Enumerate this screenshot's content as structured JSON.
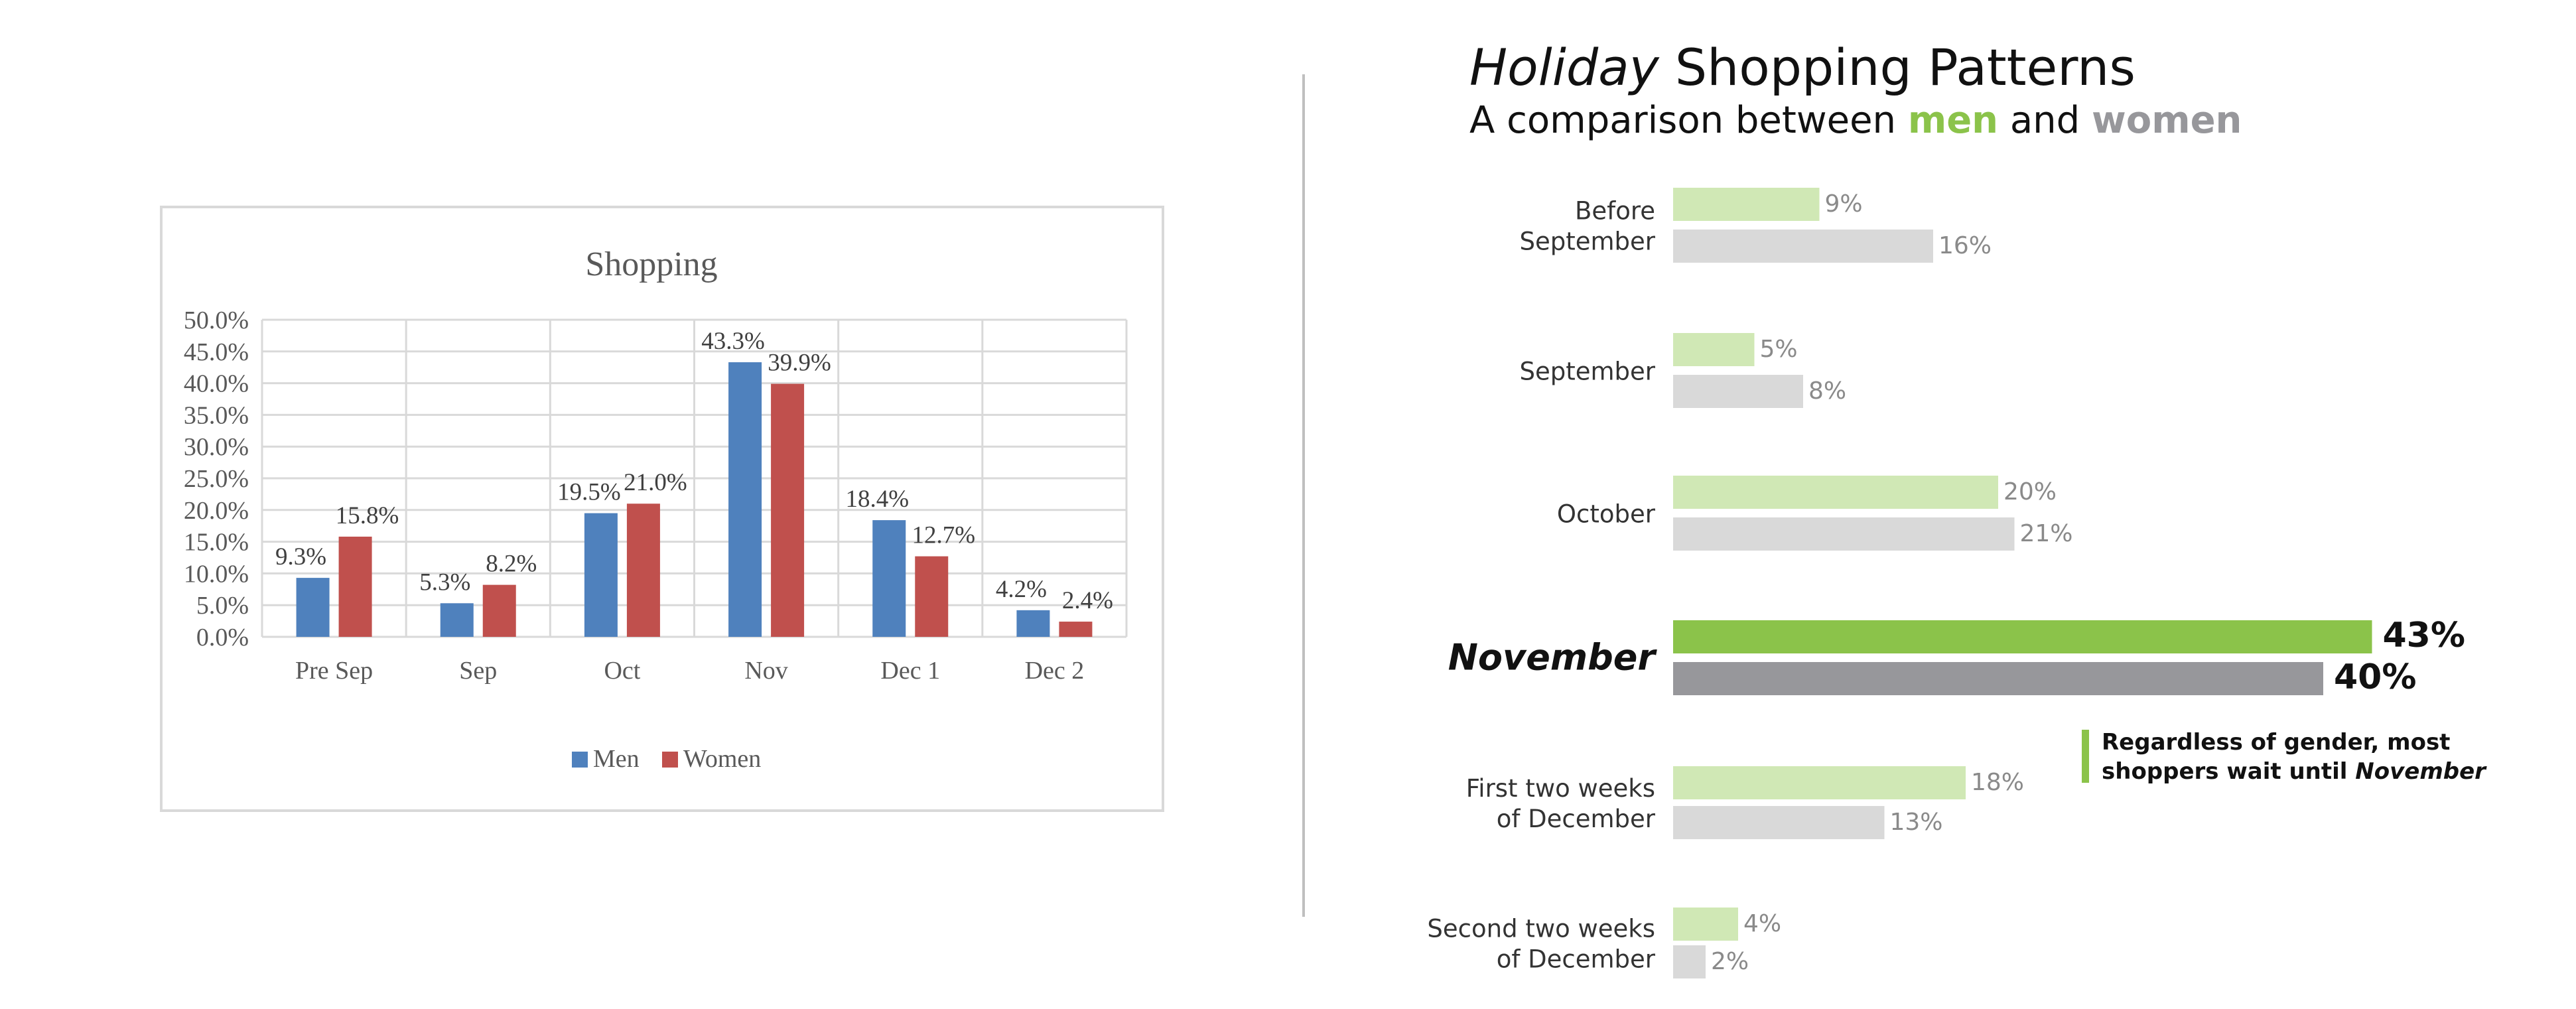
{
  "left_chart": {
    "title": "Shopping",
    "colors": {
      "men": "#4f81bd",
      "women": "#c0504d",
      "grid": "#d9d9d9",
      "frame": "#d9d9d9",
      "text": "#595959"
    }
  },
  "right_chart": {
    "title_italic": "Holiday",
    "title_rest": " Shopping Patterns",
    "subtitle_prefix": "A comparison between ",
    "subtitle_men": "men",
    "subtitle_mid": " and ",
    "subtitle_women": "women",
    "callout_line1": "Regardless of gender, most",
    "callout_line2_prefix": "shoppers wait until ",
    "callout_line2_italic": "November",
    "colors": {
      "men": "#d0e8b5",
      "women": "#d9d9d9",
      "men_highlight": "#8bc34a",
      "women_highlight": "#97979b",
      "divider": "#bfbfbf",
      "label": "#333333",
      "value": "#8a8a8a"
    }
  },
  "chart_data": [
    {
      "type": "bar",
      "title": "Shopping",
      "categories": [
        "Pre Sep",
        "Sep",
        "Oct",
        "Nov",
        "Dec 1",
        "Dec 2"
      ],
      "series": [
        {
          "name": "Men",
          "values": [
            9.3,
            5.3,
            19.5,
            43.3,
            18.4,
            4.2
          ],
          "labels": [
            "9.3%",
            "5.3%",
            "19.5%",
            "43.3%",
            "18.4%",
            "4.2%"
          ]
        },
        {
          "name": "Women",
          "values": [
            15.8,
            8.2,
            21.0,
            39.9,
            12.7,
            2.4
          ],
          "labels": [
            "15.8%",
            "8.2%",
            "21.0%",
            "39.9%",
            "12.7%",
            "2.4%"
          ]
        }
      ],
      "yticks": [
        "0.0%",
        "5.0%",
        "10.0%",
        "15.0%",
        "20.0%",
        "25.0%",
        "30.0%",
        "35.0%",
        "40.0%",
        "45.0%",
        "50.0%"
      ],
      "ylim": [
        0,
        50
      ],
      "grid": true,
      "legend": "bottom"
    },
    {
      "type": "bar",
      "orientation": "horizontal",
      "title": "Holiday Shopping Patterns",
      "subtitle": "A comparison between men and women",
      "categories": [
        [
          "Before",
          "September"
        ],
        [
          "September"
        ],
        [
          "October"
        ],
        [
          "November"
        ],
        [
          "First two weeks",
          "of December"
        ],
        [
          "Second two weeks",
          "of December"
        ]
      ],
      "highlight_index": 3,
      "series": [
        {
          "values": [
            9,
            5,
            20,
            43,
            18,
            4
          ],
          "labels": [
            "9%",
            "5%",
            "20%",
            "43%",
            "18%",
            "4%"
          ]
        },
        {
          "values": [
            16,
            8,
            21,
            40,
            13,
            2
          ],
          "labels": [
            "16%",
            "8%",
            "21%",
            "40%",
            "13%",
            "2%"
          ]
        }
      ]
    }
  ]
}
